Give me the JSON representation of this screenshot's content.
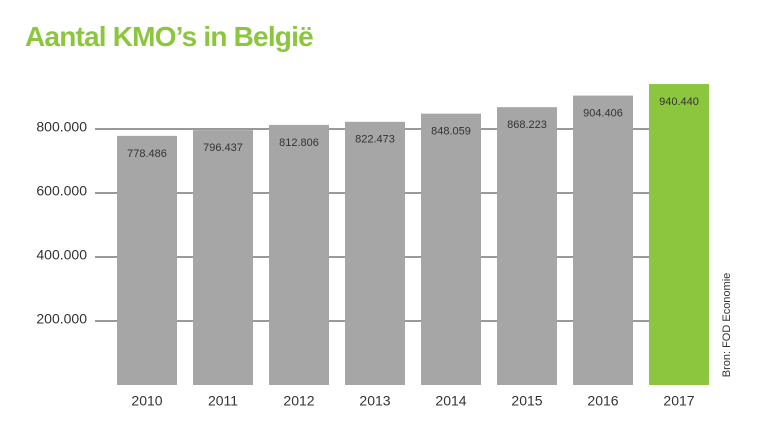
{
  "chart_data": {
    "type": "bar",
    "title": "Aantal KMO’s in België",
    "categories": [
      "2010",
      "2011",
      "2012",
      "2013",
      "2014",
      "2015",
      "2016",
      "2017"
    ],
    "values": [
      778486,
      796437,
      812806,
      822473,
      848059,
      868223,
      904406,
      940440
    ],
    "value_labels": [
      "778.486",
      "796.437",
      "812.806",
      "822.473",
      "848.059",
      "868.223",
      "904.406",
      "940.440"
    ],
    "colors": [
      "#a6a6a6",
      "#a6a6a6",
      "#a6a6a6",
      "#a6a6a6",
      "#a6a6a6",
      "#a6a6a6",
      "#a6a6a6",
      "#8cc63e"
    ],
    "ylim": [
      0,
      950000
    ],
    "yticks": [
      {
        "value": 200000,
        "label": "200.000"
      },
      {
        "value": 400000,
        "label": "400.000"
      },
      {
        "value": 600000,
        "label": "600.000"
      },
      {
        "value": 800000,
        "label": "800.000"
      }
    ],
    "grid": true,
    "source": "Bron: FOD Economie"
  }
}
